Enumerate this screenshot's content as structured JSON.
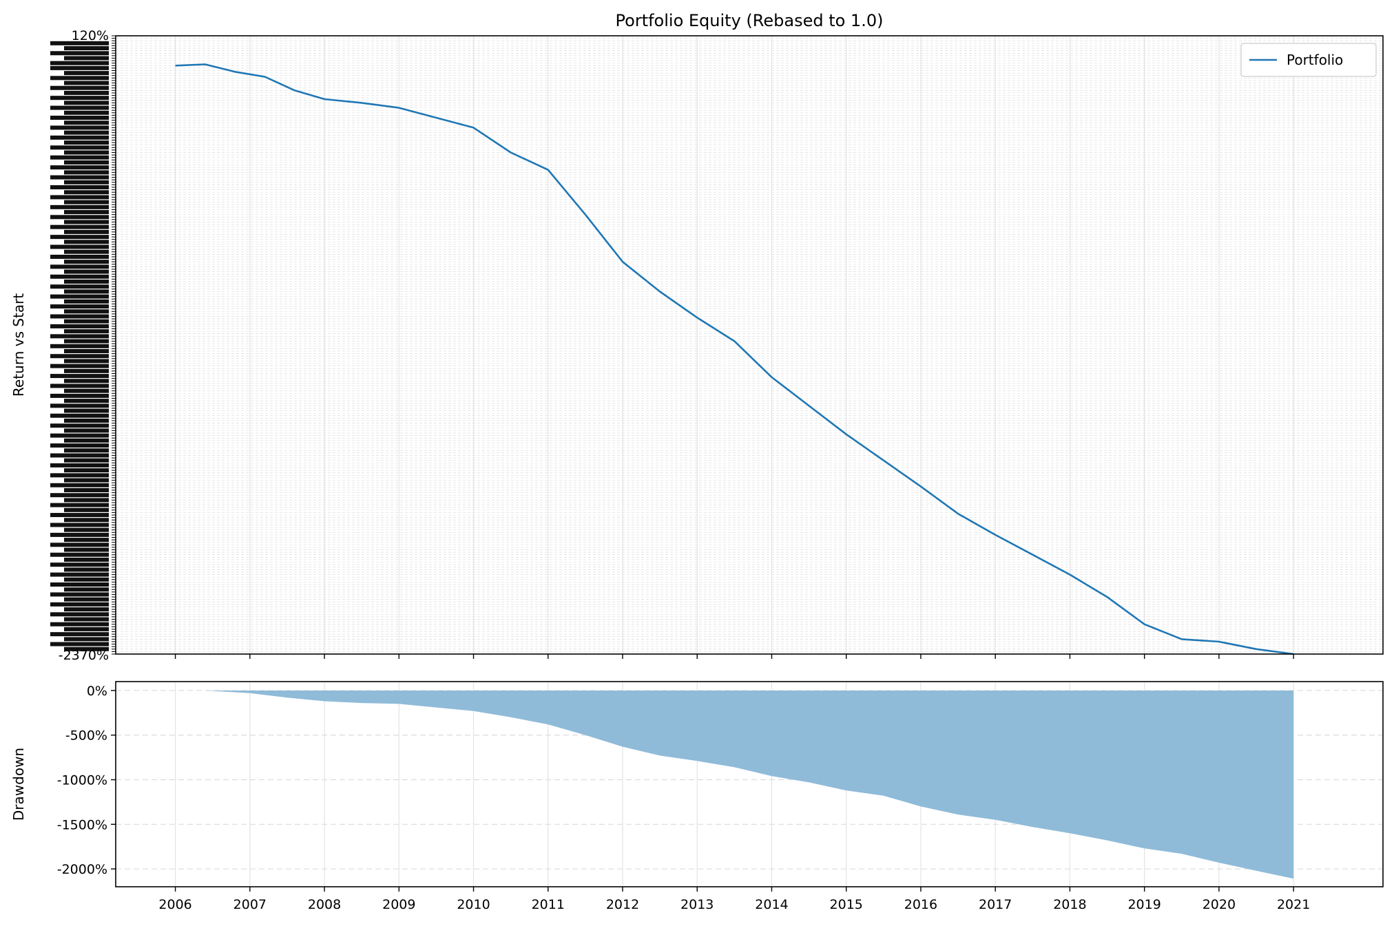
{
  "chart_data": [
    {
      "type": "line",
      "title": "Portfolio Equity (Rebased to 1.0)",
      "xlabel": "",
      "ylabel": "Return vs Start",
      "xlim": [
        2005.2,
        2022.2
      ],
      "ylim": [
        -2370,
        120
      ],
      "grid": true,
      "legend": {
        "placement": "top-right",
        "entries": [
          "Portfolio"
        ]
      },
      "y_tick_labels_visible": [
        "120%",
        "-2370%"
      ],
      "y_tick_labels_note": "dense overlapping percentage tick labels",
      "series": [
        {
          "name": "Portfolio",
          "color": "#1f77b4",
          "x": [
            2006.0,
            2006.4,
            2006.8,
            2007.2,
            2007.6,
            2008.0,
            2008.5,
            2009.0,
            2009.5,
            2010.0,
            2010.5,
            2011.0,
            2011.5,
            2012.0,
            2012.5,
            2013.0,
            2013.5,
            2014.0,
            2014.5,
            2015.0,
            2015.5,
            2016.0,
            2016.5,
            2017.0,
            2017.5,
            2018.0,
            2018.5,
            2019.0,
            2019.5,
            2020.0,
            2020.5,
            2021.0
          ],
          "y": [
            0,
            5,
            -25,
            -45,
            -100,
            -135,
            -150,
            -170,
            -210,
            -250,
            -350,
            -420,
            -600,
            -790,
            -910,
            -1015,
            -1110,
            -1255,
            -1370,
            -1485,
            -1590,
            -1695,
            -1805,
            -1890,
            -1970,
            -2050,
            -2140,
            -2250,
            -2310,
            -2320,
            -2350,
            -2370
          ]
        }
      ]
    },
    {
      "type": "area",
      "title": "",
      "xlabel": "",
      "ylabel": "Drawdown",
      "xlim": [
        2005.2,
        2022.2
      ],
      "ylim": [
        -2200,
        100
      ],
      "grid": true,
      "x_ticks": [
        "2006",
        "2007",
        "2008",
        "2009",
        "2010",
        "2011",
        "2012",
        "2013",
        "2014",
        "2015",
        "2016",
        "2017",
        "2018",
        "2019",
        "2020",
        "2021"
      ],
      "y_ticks": [
        {
          "value": 0,
          "label": "0%"
        },
        {
          "value": -500,
          "label": "-500%"
        },
        {
          "value": -1000,
          "label": "-1000%"
        },
        {
          "value": -1500,
          "label": "-1500%"
        },
        {
          "value": -2000,
          "label": "-2000%"
        }
      ],
      "series": [
        {
          "name": "",
          "color": "#8fbbd9",
          "x": [
            2006.4,
            2007.0,
            2007.5,
            2008.0,
            2008.5,
            2009.0,
            2009.5,
            2010.0,
            2010.5,
            2011.0,
            2011.5,
            2012.0,
            2012.5,
            2013.0,
            2013.5,
            2014.0,
            2014.5,
            2015.0,
            2015.5,
            2016.0,
            2016.5,
            2017.0,
            2017.5,
            2018.0,
            2018.5,
            2019.0,
            2019.5,
            2020.0,
            2020.5,
            2021.0
          ],
          "y": [
            0,
            -30,
            -80,
            -120,
            -140,
            -150,
            -190,
            -230,
            -300,
            -380,
            -500,
            -630,
            -730,
            -790,
            -860,
            -960,
            -1030,
            -1120,
            -1180,
            -1300,
            -1390,
            -1450,
            -1530,
            -1600,
            -1680,
            -1770,
            -1830,
            -1930,
            -2020,
            -2110
          ]
        }
      ]
    }
  ]
}
